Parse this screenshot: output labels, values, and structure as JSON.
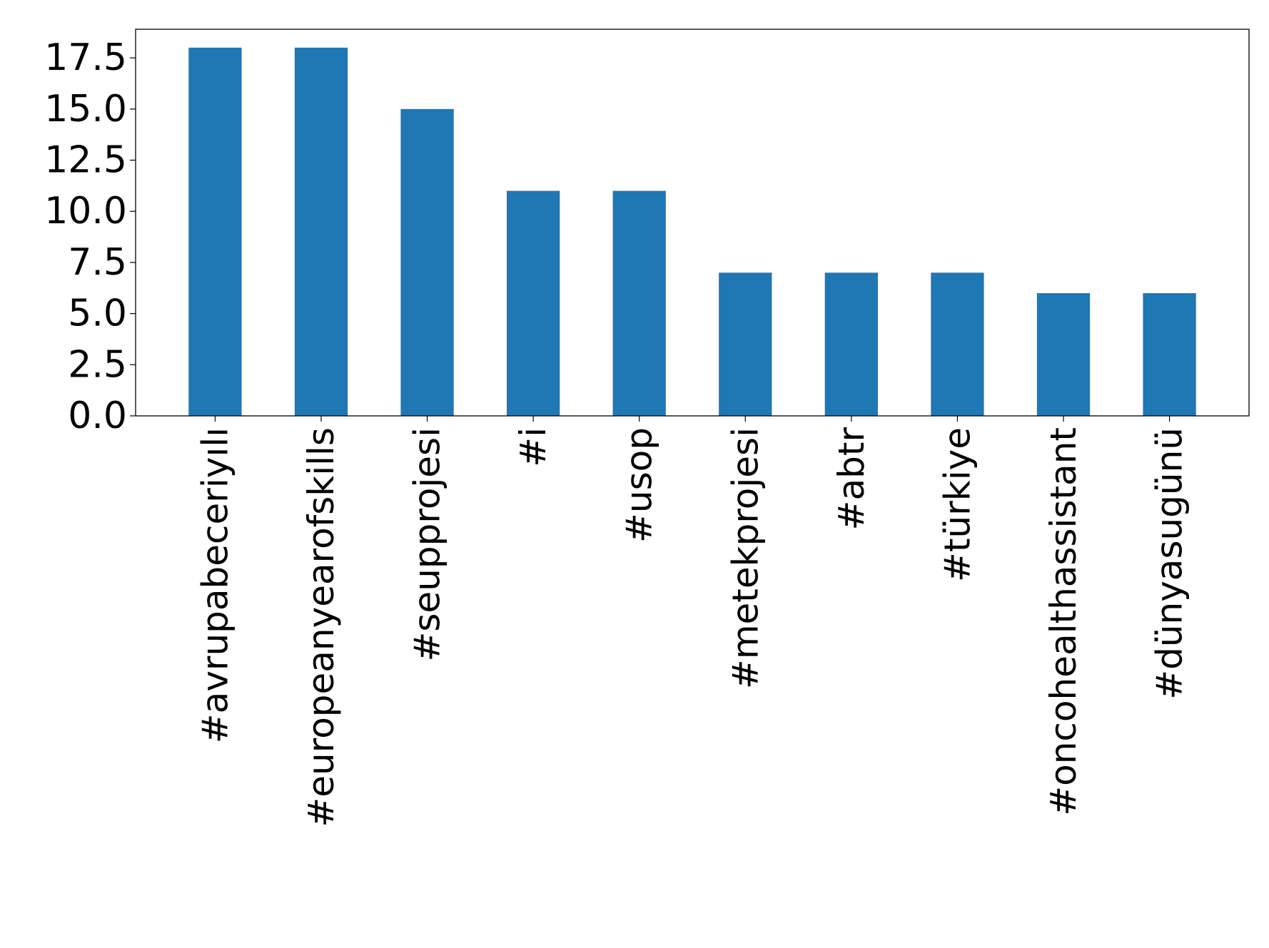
{
  "chart_data": {
    "type": "bar",
    "categories": [
      "#avrupabeceriyılı",
      "#europeanyearofskills",
      "#seupprojesi",
      "#i",
      "#usop",
      "#metekprojesi",
      "#abtr",
      "#türkiye",
      "#oncohealthassistant",
      "#dünyasugünü"
    ],
    "values": [
      18,
      18,
      15,
      11,
      11,
      7,
      7,
      7,
      6,
      6
    ],
    "ylim": [
      0,
      18.9
    ],
    "yticks": [
      "0.0",
      "2.5",
      "5.0",
      "7.5",
      "10.0",
      "12.5",
      "15.0",
      "17.5"
    ],
    "title": "",
    "xlabel": "",
    "ylabel": "",
    "grid": false,
    "legend": "none",
    "bar_color": "#1f77b4"
  }
}
